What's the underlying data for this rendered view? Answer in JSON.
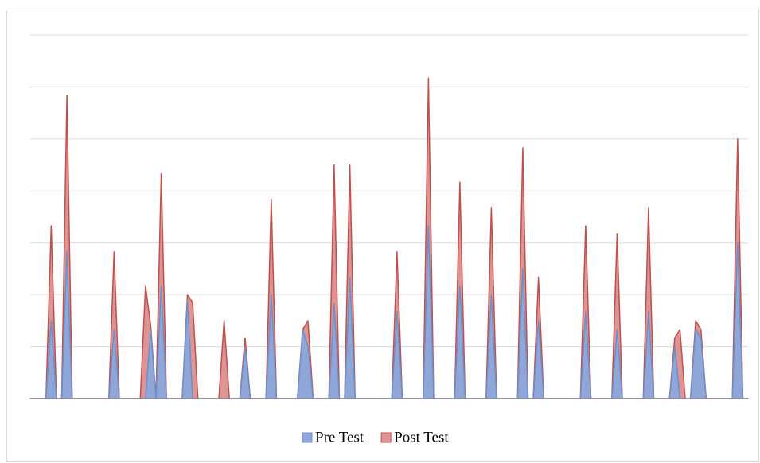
{
  "chart_data": {
    "type": "area",
    "categories": [
      null,
      null,
      null,
      null,
      null,
      null,
      null,
      null,
      null,
      null,
      null,
      null,
      null,
      null,
      null,
      null,
      null,
      null,
      null,
      null,
      null,
      null,
      null,
      null,
      null,
      null,
      null,
      null,
      null,
      null,
      null,
      null,
      null,
      null,
      null,
      null,
      null,
      null,
      null,
      null,
      null,
      null,
      null,
      null,
      null,
      null,
      null,
      null,
      null,
      null,
      null,
      null,
      null,
      null,
      null,
      null,
      null,
      null,
      null,
      null,
      null,
      null,
      null,
      null,
      null,
      null,
      null,
      null,
      null,
      null,
      null,
      null,
      null,
      null,
      null,
      null,
      null,
      null,
      null,
      null,
      null,
      null,
      null,
      null,
      null,
      null,
      null,
      null,
      null,
      null,
      null,
      null,
      null,
      null,
      null,
      null,
      null,
      null,
      null,
      null,
      null,
      null,
      null,
      null,
      null,
      null,
      null,
      null,
      null,
      null,
      null,
      null,
      null,
      null,
      null,
      null,
      null,
      null,
      null,
      null,
      null,
      null,
      null,
      null,
      null,
      null,
      null,
      null,
      null,
      null,
      null,
      null,
      null,
      null,
      null,
      null,
      null,
      null
    ],
    "series": [
      {
        "name": "Pre Test",
        "color": "#8fa6d8",
        "values": [
          0,
          0,
          0,
          0,
          1.5,
          0,
          0,
          2.83,
          0,
          0,
          0,
          0,
          0,
          0,
          0,
          0,
          1.33,
          0,
          0,
          0,
          0,
          0,
          0,
          1.33,
          0,
          2.17,
          0,
          0,
          0,
          0,
          1.9,
          0,
          0,
          0,
          0,
          0,
          0,
          0,
          0,
          0,
          0,
          1.0,
          0,
          0,
          0,
          0,
          2.0,
          0,
          0,
          0,
          0,
          0,
          1.33,
          1.0,
          0,
          0,
          0,
          0,
          1.83,
          0,
          0,
          2.33,
          0,
          0,
          0,
          0,
          0,
          0,
          0,
          0,
          1.67,
          0,
          0,
          0,
          0,
          0,
          3.33,
          0,
          0,
          0,
          0,
          0,
          2.17,
          0,
          0,
          0,
          0,
          0,
          2.0,
          0,
          0,
          0,
          0,
          0,
          2.5,
          0,
          0,
          1.5,
          0,
          0,
          0,
          0,
          0,
          0,
          0,
          0,
          1.67,
          0,
          0,
          0,
          0,
          0,
          1.33,
          0,
          0,
          0,
          0,
          0,
          1.67,
          0,
          0,
          0,
          0,
          1.0,
          0,
          0,
          0,
          1.33,
          1.17,
          0,
          0,
          0,
          0,
          0,
          0,
          3.0,
          0,
          0
        ]
      },
      {
        "name": "Post Test",
        "color": "#dc9494",
        "values": [
          0,
          0,
          0,
          0,
          3.33,
          0,
          0,
          5.83,
          0,
          0,
          0,
          0,
          0,
          0,
          0,
          0,
          2.83,
          0,
          0,
          0,
          0,
          0,
          2.17,
          1.4,
          0,
          4.33,
          0,
          0,
          0,
          0,
          2.0,
          1.85,
          0,
          0,
          0,
          0,
          0,
          1.5,
          0,
          0,
          0,
          1.17,
          0,
          0,
          0,
          0,
          3.83,
          0,
          0,
          0,
          0,
          0,
          1.33,
          1.5,
          0,
          0,
          0,
          0,
          4.5,
          0,
          0,
          4.5,
          0,
          0,
          0,
          0,
          0,
          0,
          0,
          0,
          2.83,
          0,
          0,
          0,
          0,
          0,
          6.17,
          0,
          0,
          0,
          0,
          0,
          4.17,
          0,
          0,
          0,
          0,
          0,
          3.67,
          0,
          0,
          0,
          0,
          0,
          4.83,
          0,
          0,
          2.33,
          0,
          0,
          0,
          0,
          0,
          0,
          0,
          0,
          3.33,
          0,
          0,
          0,
          0,
          0,
          3.17,
          0,
          0,
          0,
          0,
          0,
          3.67,
          0,
          0,
          0,
          0,
          1.17,
          1.33,
          0,
          0,
          1.5,
          1.33,
          0,
          0,
          0,
          0,
          0,
          0,
          5.0,
          0,
          0
        ]
      }
    ],
    "ylim": [
      0,
      7
    ],
    "yticks": [
      0,
      1,
      2,
      3,
      4,
      5,
      6,
      7
    ],
    "grid": true,
    "legend": "bottom"
  }
}
